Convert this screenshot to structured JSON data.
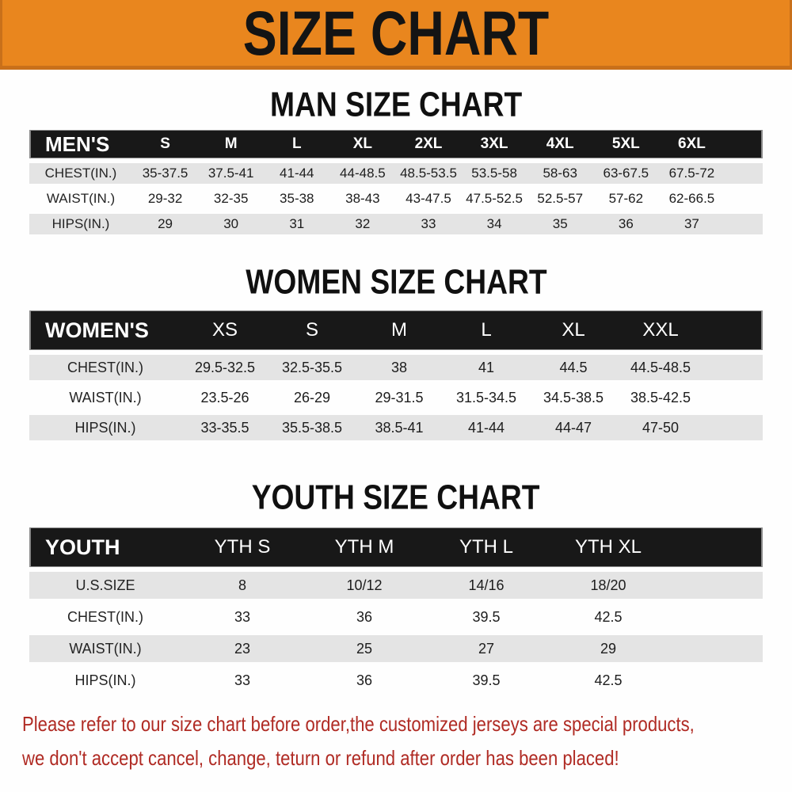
{
  "banner": {
    "title": "SIZE CHART"
  },
  "chart_data": [
    {
      "type": "table",
      "title": "MAN SIZE CHART",
      "headers": [
        "MEN'S",
        "S",
        "M",
        "L",
        "XL",
        "2XL",
        "3XL",
        "4XL",
        "5XL",
        "6XL"
      ],
      "rows": [
        {
          "label": "CHEST(IN.)",
          "values": [
            "35-37.5",
            "37.5-41",
            "41-44",
            "44-48.5",
            "48.5-53.5",
            "53.5-58",
            "58-63",
            "63-67.5",
            "67.5-72"
          ]
        },
        {
          "label": "WAIST(IN.)",
          "values": [
            "29-32",
            "32-35",
            "35-38",
            "38-43",
            "43-47.5",
            "47.5-52.5",
            "52.5-57",
            "57-62",
            "62-66.5"
          ]
        },
        {
          "label": "HIPS(IN.)",
          "values": [
            "29",
            "30",
            "31",
            "32",
            "33",
            "34",
            "35",
            "36",
            "37"
          ]
        }
      ]
    },
    {
      "type": "table",
      "title": "WOMEN SIZE CHART",
      "headers": [
        "WOMEN'S",
        "XS",
        "S",
        "M",
        "L",
        "XL",
        "XXL"
      ],
      "rows": [
        {
          "label": "CHEST(IN.)",
          "values": [
            "29.5-32.5",
            "32.5-35.5",
            "38",
            "41",
            "44.5",
            "44.5-48.5"
          ]
        },
        {
          "label": "WAIST(IN.)",
          "values": [
            "23.5-26",
            "26-29",
            "29-31.5",
            "31.5-34.5",
            "34.5-38.5",
            "38.5-42.5"
          ]
        },
        {
          "label": "HIPS(IN.)",
          "values": [
            "33-35.5",
            "35.5-38.5",
            "38.5-41",
            "41-44",
            "44-47",
            "47-50"
          ]
        }
      ]
    },
    {
      "type": "table",
      "title": "YOUTH SIZE CHART",
      "headers": [
        "YOUTH",
        "YTH S",
        "YTH M",
        "YTH L",
        "YTH XL"
      ],
      "rows": [
        {
          "label": "U.S.SIZE",
          "values": [
            "8",
            "10/12",
            "14/16",
            "18/20"
          ]
        },
        {
          "label": "CHEST(IN.)",
          "values": [
            "33",
            "36",
            "39.5",
            "42.5"
          ]
        },
        {
          "label": "WAIST(IN.)",
          "values": [
            "23",
            "25",
            "27",
            "29"
          ]
        },
        {
          "label": "HIPS(IN.)",
          "values": [
            "33",
            "36",
            "39.5",
            "42.5"
          ]
        }
      ]
    }
  ],
  "footer": {
    "line1": "Please refer to our size chart before order,the customized jerseys are special products,",
    "line2": "we don't accept cancel, change, teturn or refund after order has been placed!"
  },
  "colors": {
    "banner_bg": "#E9861E",
    "banner_edge": "#C9701A",
    "banner_text": "#141414",
    "header_bg": "#181818",
    "header_text": "#FFFFFF",
    "row_alt_bg": "#E4E4E4",
    "notice_text": "#B02B24"
  }
}
